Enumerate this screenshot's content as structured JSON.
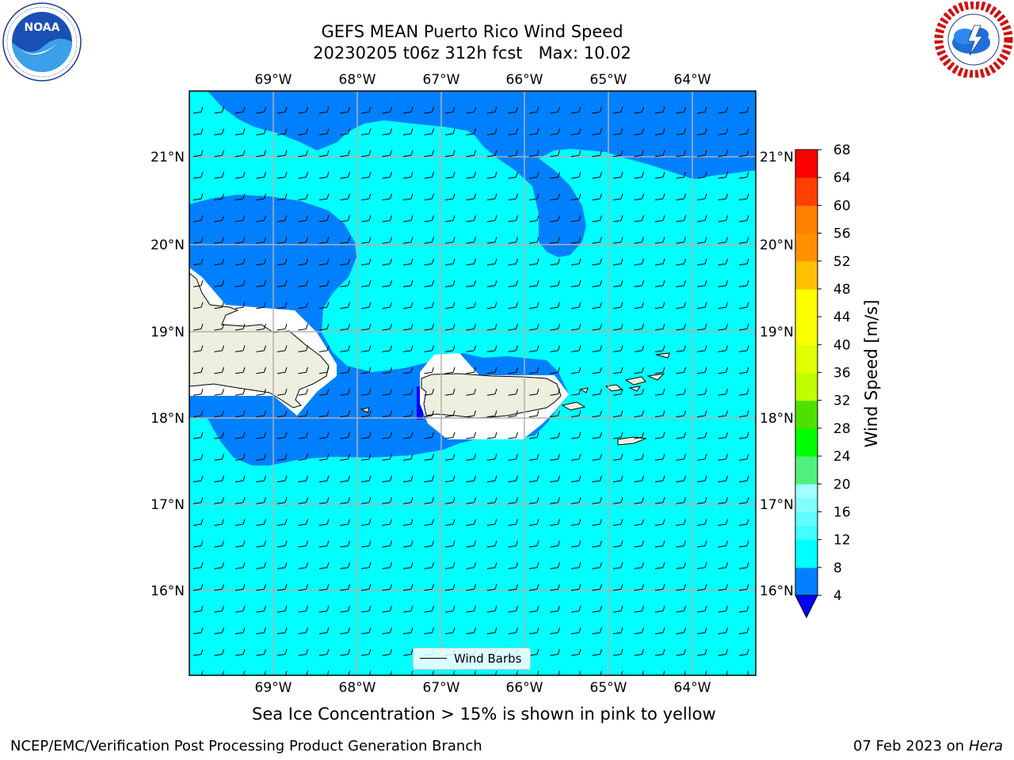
{
  "header": {
    "title_line1": "GEFS MEAN Puerto Rico Wind Speed",
    "title_line2": "20230205 t06z 312h fcst   Max: 10.02"
  },
  "logos": {
    "noaa": {
      "icon": "noaa-logo-icon",
      "text": "NOAA"
    },
    "nws": {
      "icon": "nws-logo-icon"
    }
  },
  "map": {
    "lon_labels": [
      "69°W",
      "68°W",
      "67°W",
      "66°W",
      "65°W",
      "64°W"
    ],
    "lat_labels": [
      "21°N",
      "20°N",
      "19°N",
      "18°N",
      "17°N",
      "16°N"
    ],
    "colors": {
      "ocean_fast": "#00ffff",
      "ocean_slow": "#0080ff",
      "ocean_calm": "#0000ff",
      "land": "#efefdf",
      "gridline": "#b0b0b0"
    },
    "barb_legend_label": "Wind Barbs"
  },
  "colorbar": {
    "label": "Wind Speed [m/s]",
    "ticks": [
      "4",
      "8",
      "12",
      "16",
      "20",
      "24",
      "28",
      "32",
      "36",
      "40",
      "44",
      "48",
      "52",
      "56",
      "60",
      "64",
      "68"
    ],
    "levels": [
      {
        "from": 4,
        "to": 8,
        "color": "#0080ff"
      },
      {
        "from": 8,
        "to": 12,
        "color": "#00ffff"
      },
      {
        "from": 12,
        "to": 14,
        "color": "#40ffff"
      },
      {
        "from": 14,
        "to": 16,
        "color": "#60ffff"
      },
      {
        "from": 16,
        "to": 18,
        "color": "#80ffff"
      },
      {
        "from": 18,
        "to": 20,
        "color": "#a0ffff"
      },
      {
        "from": 20,
        "to": 24,
        "color": "#50f080"
      },
      {
        "from": 24,
        "to": 28,
        "color": "#00ff00"
      },
      {
        "from": 28,
        "to": 32,
        "color": "#50e000"
      },
      {
        "from": 32,
        "to": 36,
        "color": "#c0ff00"
      },
      {
        "from": 36,
        "to": 40,
        "color": "#e0ff00"
      },
      {
        "from": 40,
        "to": 44,
        "color": "#f8ff00"
      },
      {
        "from": 44,
        "to": 48,
        "color": "#ffff00"
      },
      {
        "from": 48,
        "to": 52,
        "color": "#ffc000"
      },
      {
        "from": 52,
        "to": 56,
        "color": "#ff9000"
      },
      {
        "from": 56,
        "to": 60,
        "color": "#ff8000"
      },
      {
        "from": 60,
        "to": 64,
        "color": "#ff4000"
      },
      {
        "from": 64,
        "to": 68,
        "color": "#ff0000"
      }
    ],
    "under_color": "#0000ff"
  },
  "captions": {
    "sea_ice_note": "Sea Ice Concentration > 15% is shown in pink to yellow"
  },
  "footer": {
    "left": "NCEP/EMC/Verification Post Processing Product Generation Branch",
    "right_date": "07 Feb 2023 on",
    "right_host": "Hera"
  }
}
